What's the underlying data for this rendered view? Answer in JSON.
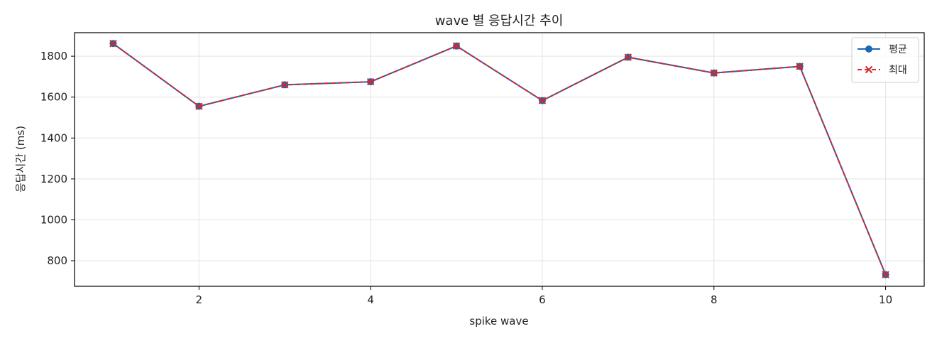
{
  "chart_data": {
    "type": "line",
    "title": "wave 별 응답시간 추이",
    "xlabel": "spike wave",
    "ylabel": "응답시간 (ms)",
    "x": [
      1,
      2,
      3,
      4,
      5,
      6,
      7,
      8,
      9,
      10
    ],
    "x_ticks": [
      2,
      4,
      6,
      8,
      10
    ],
    "y_ticks": [
      800,
      1000,
      1200,
      1400,
      1600,
      1800
    ],
    "xlim": [
      0.55,
      10.45
    ],
    "ylim": [
      675,
      1915
    ],
    "grid": true,
    "legend_position": "top-right",
    "series": [
      {
        "name": "평균",
        "values": [
          1862,
          1555,
          1660,
          1675,
          1850,
          1583,
          1795,
          1718,
          1750,
          732
        ],
        "color": "#1f67b4",
        "line_style": "solid",
        "marker": "circle"
      },
      {
        "name": "최대",
        "values": [
          1862,
          1555,
          1660,
          1675,
          1850,
          1583,
          1795,
          1718,
          1750,
          732
        ],
        "color": "#d62728",
        "line_style": "dashed",
        "marker": "x"
      }
    ]
  }
}
